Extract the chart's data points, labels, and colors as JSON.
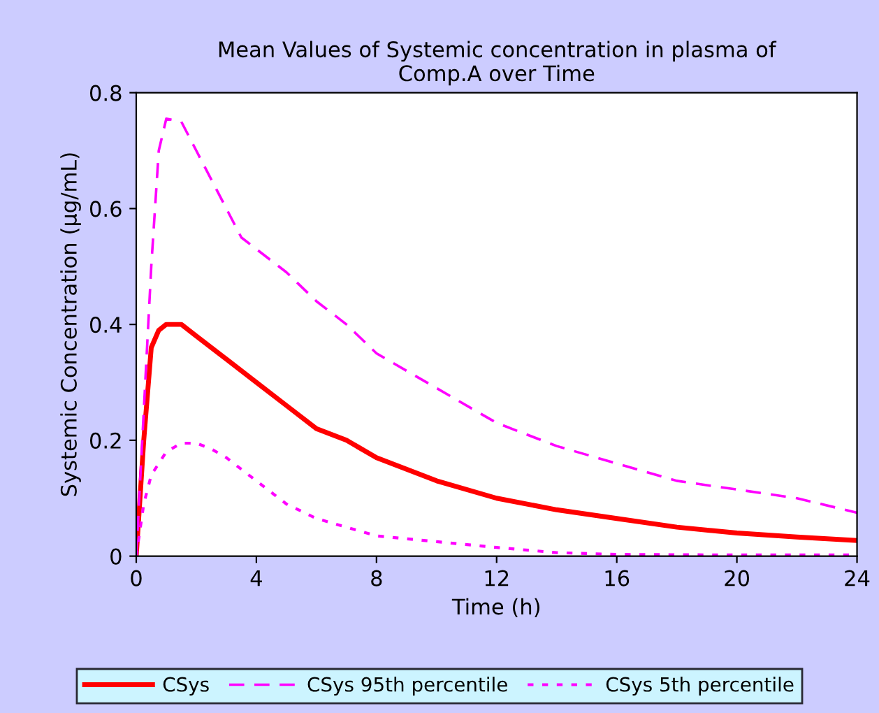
{
  "chart_data": {
    "type": "line",
    "title": "Mean Values of Systemic concentration in plasma of\nComp.A over Time",
    "xlabel": "Time (h)",
    "ylabel": "Systemic Concentration (µg/mL)",
    "xlim": [
      0,
      24
    ],
    "xticks": [
      0,
      4,
      8,
      12,
      16,
      20,
      24
    ],
    "ylim": [
      0,
      0.8
    ],
    "yticks": [
      0,
      0.2,
      0.4,
      0.6,
      0.8
    ],
    "grid": false,
    "legend": "bottom",
    "marker": "none",
    "series": [
      {
        "name": "CSys",
        "color": "#ff0000",
        "line_style": "solid",
        "x": [
          0,
          0.25,
          0.5,
          0.75,
          1,
          1.5,
          2,
          3,
          4,
          5,
          6,
          7,
          8,
          9,
          10,
          12,
          14,
          16,
          18,
          20,
          22,
          24
        ],
        "values": [
          0,
          0.2,
          0.36,
          0.39,
          0.4,
          0.4,
          0.38,
          0.34,
          0.3,
          0.26,
          0.22,
          0.2,
          0.17,
          0.15,
          0.13,
          0.1,
          0.08,
          0.065,
          0.05,
          0.04,
          0.033,
          0.027
        ]
      },
      {
        "name": "CSys 95th percentile",
        "color": "#ff00ff",
        "line_style": "dashed",
        "x": [
          0,
          0.25,
          0.5,
          0.75,
          1,
          1.5,
          2,
          3,
          3.5,
          4,
          5,
          6,
          7,
          8,
          9,
          10,
          12,
          14,
          16,
          18,
          20,
          22,
          24
        ],
        "values": [
          0,
          0.25,
          0.5,
          0.7,
          0.755,
          0.75,
          0.7,
          0.6,
          0.55,
          0.53,
          0.49,
          0.44,
          0.4,
          0.35,
          0.32,
          0.29,
          0.23,
          0.19,
          0.16,
          0.13,
          0.115,
          0.1,
          0.075
        ]
      },
      {
        "name": "CSys 5th percentile",
        "color": "#ff00ff",
        "line_style": "dotted",
        "x": [
          0,
          0.25,
          0.5,
          1,
          1.5,
          2,
          2.5,
          3,
          4,
          5,
          6,
          7,
          8,
          10,
          12,
          14,
          16,
          20,
          24
        ],
        "values": [
          0,
          0.09,
          0.14,
          0.18,
          0.195,
          0.195,
          0.185,
          0.17,
          0.13,
          0.09,
          0.065,
          0.05,
          0.035,
          0.025,
          0.015,
          0.006,
          0.003,
          0.002,
          0.002
        ]
      }
    ]
  }
}
